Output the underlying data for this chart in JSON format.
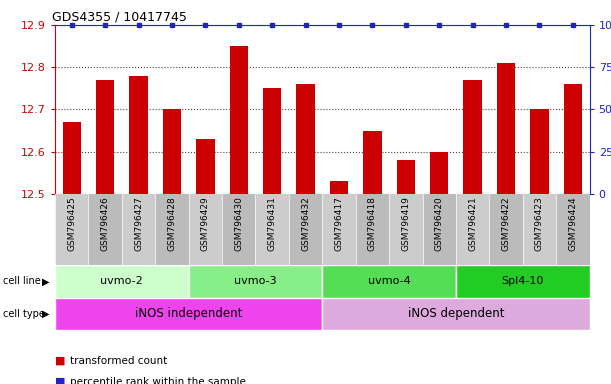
{
  "title": "GDS4355 / 10417745",
  "samples": [
    "GSM796425",
    "GSM796426",
    "GSM796427",
    "GSM796428",
    "GSM796429",
    "GSM796430",
    "GSM796431",
    "GSM796432",
    "GSM796417",
    "GSM796418",
    "GSM796419",
    "GSM796420",
    "GSM796421",
    "GSM796422",
    "GSM796423",
    "GSM796424"
  ],
  "bar_values": [
    12.67,
    12.77,
    12.78,
    12.7,
    12.63,
    12.85,
    12.75,
    12.76,
    12.53,
    12.65,
    12.58,
    12.6,
    12.77,
    12.81,
    12.7,
    12.76
  ],
  "percentile_values": [
    100,
    100,
    100,
    100,
    100,
    100,
    100,
    100,
    100,
    100,
    100,
    100,
    100,
    100,
    100,
    100
  ],
  "bar_color": "#cc0000",
  "percentile_color": "#2222cc",
  "ylim_left": [
    12.5,
    12.9
  ],
  "ylim_right": [
    0,
    100
  ],
  "yticks_left": [
    12.5,
    12.6,
    12.7,
    12.8,
    12.9
  ],
  "yticks_right": [
    0,
    25,
    50,
    75,
    100
  ],
  "cell_line_groups": [
    {
      "label": "uvmo-2",
      "start": 0,
      "end": 3,
      "color": "#ccffcc"
    },
    {
      "label": "uvmo-3",
      "start": 4,
      "end": 7,
      "color": "#88ee88"
    },
    {
      "label": "uvmo-4",
      "start": 8,
      "end": 11,
      "color": "#55dd55"
    },
    {
      "label": "Spl4-10",
      "start": 12,
      "end": 15,
      "color": "#22cc22"
    }
  ],
  "cell_type_groups": [
    {
      "label": "iNOS independent",
      "start": 0,
      "end": 7,
      "color": "#ee44ee"
    },
    {
      "label": "iNOS dependent",
      "start": 8,
      "end": 15,
      "color": "#ddaadd"
    }
  ],
  "legend_items": [
    {
      "color": "#cc0000",
      "label": "transformed count"
    },
    {
      "color": "#2222cc",
      "label": "percentile rank within the sample"
    }
  ],
  "bar_width": 0.55,
  "grid_color": "#444444",
  "background_color": "#ffffff",
  "left_axis_color": "#cc0000",
  "right_axis_color": "#2222cc",
  "label_bg_even": "#cccccc",
  "label_bg_odd": "#bbbbbb"
}
